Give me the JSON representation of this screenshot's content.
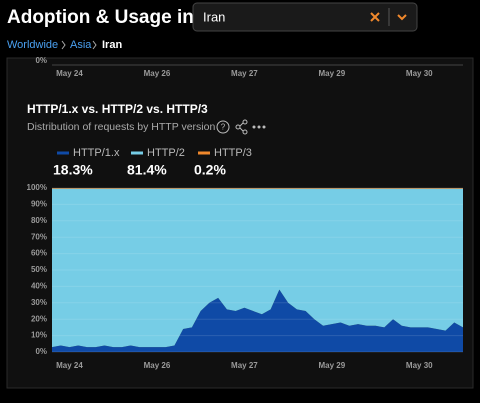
{
  "header": {
    "title": "Adoption & Usage in",
    "location_select": "Iran"
  },
  "breadcrumb": [
    "Worldwide",
    "Asia",
    "Iran"
  ],
  "previous_chart": {
    "ytick": "0%",
    "x_labels": [
      "May 24",
      "May 26",
      "May 27",
      "May 29",
      "May 30"
    ]
  },
  "chart_data": {
    "type": "area",
    "stacked": true,
    "title": "HTTP/1.x vs. HTTP/2 vs. HTTP/3",
    "subtitle": "Distribution of requests by HTTP version",
    "categories": [
      null,
      null,
      "May 24",
      null,
      null,
      null,
      null,
      null,
      null,
      null,
      null,
      null,
      "May 26",
      null,
      null,
      null,
      null,
      null,
      null,
      null,
      null,
      null,
      "May 27",
      null,
      null,
      null,
      null,
      null,
      null,
      null,
      null,
      null,
      "May 29",
      null,
      null,
      null,
      null,
      null,
      null,
      null,
      null,
      null,
      "May 30",
      null,
      null,
      null,
      null,
      null
    ],
    "series": [
      {
        "name": "HTTP/1.x",
        "color": "#0f4aa6",
        "share": {
          "value": 18.3,
          "label": "18.3%"
        },
        "values": [
          3,
          4,
          3,
          4,
          3,
          3,
          4,
          3,
          3,
          4,
          3,
          3,
          3,
          3,
          4,
          14,
          15,
          25,
          30,
          33,
          26,
          25,
          27,
          25,
          23,
          26,
          38,
          30,
          26,
          25,
          20,
          16,
          17,
          18,
          16,
          17,
          16,
          16,
          15,
          20,
          16,
          15,
          15,
          15,
          14,
          13,
          18,
          15
        ]
      },
      {
        "name": "HTTP/2",
        "color": "#76cde6",
        "share": {
          "value": 81.4,
          "label": "81.4%"
        },
        "values": [
          96.6,
          95.6,
          96.6,
          95.6,
          96.6,
          96.6,
          95.6,
          96.6,
          96.6,
          95.6,
          96.6,
          96.6,
          96.6,
          96.6,
          95.6,
          85.6,
          84.6,
          74.6,
          69.6,
          66.6,
          73.6,
          74.6,
          72.6,
          74.6,
          76.6,
          73.6,
          61.6,
          69.6,
          73.6,
          74.6,
          79.6,
          83.6,
          82.6,
          81.6,
          83.6,
          82.6,
          83.6,
          83.6,
          84.6,
          79.6,
          83.6,
          84.6,
          84.6,
          84.6,
          85.6,
          86.6,
          81.6,
          84.6
        ]
      },
      {
        "name": "HTTP/3",
        "color": "#f0882c",
        "share": {
          "value": 0.2,
          "label": "0.2%"
        },
        "values": [
          0.4,
          0.4,
          0.4,
          0.4,
          0.4,
          0.4,
          0.4,
          0.4,
          0.4,
          0.4,
          0.4,
          0.4,
          0.4,
          0.4,
          0.4,
          0.4,
          0.4,
          0.4,
          0.4,
          0.4,
          0.4,
          0.4,
          0.4,
          0.4,
          0.4,
          0.4,
          0.4,
          0.4,
          0.4,
          0.4,
          0.4,
          0.4,
          0.4,
          0.4,
          0.4,
          0.4,
          0.4,
          0.4,
          0.4,
          0.4,
          0.4,
          0.4,
          0.4,
          0.4,
          0.4,
          0.4,
          0.4,
          0.4
        ]
      }
    ],
    "ylim": [
      0,
      100
    ],
    "yticks": [
      {
        "value": 0,
        "label": "0%"
      },
      {
        "value": 10,
        "label": "10%"
      },
      {
        "value": 20,
        "label": "20%"
      },
      {
        "value": 30,
        "label": "30%"
      },
      {
        "value": 40,
        "label": "40%"
      },
      {
        "value": 50,
        "label": "50%"
      },
      {
        "value": 60,
        "label": "60%"
      },
      {
        "value": 70,
        "label": "70%"
      },
      {
        "value": 80,
        "label": "80%"
      },
      {
        "value": 90,
        "label": "90%"
      },
      {
        "value": 100,
        "label": "100%"
      }
    ],
    "grid": true
  }
}
